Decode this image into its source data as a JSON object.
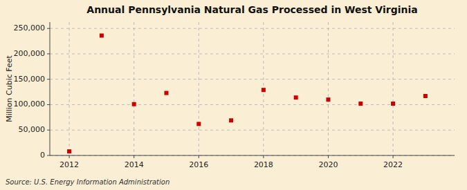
{
  "chart_data": {
    "type": "scatter",
    "title": "Annual Pennsylvania Natural Gas Processed in West Virginia",
    "ylabel": "Million Cubic Feet",
    "source": "Source: U.S. Energy Information Administration",
    "x": [
      2012,
      2013,
      2014,
      2015,
      2016,
      2017,
      2018,
      2019,
      2020,
      2021,
      2022,
      2023
    ],
    "values": [
      8000,
      236000,
      101000,
      123000,
      62000,
      69000,
      129000,
      114000,
      110000,
      102000,
      102000,
      117000
    ],
    "color": "#cc0000",
    "marker": "square",
    "xlim": [
      2011.4,
      2023.9
    ],
    "xticks": [
      2012,
      2014,
      2016,
      2018,
      2020,
      2022
    ],
    "ylim": [
      0,
      262500
    ],
    "yticks": [
      0,
      {
        "value": 50000,
        "label": "50,000"
      },
      {
        "value": 100000,
        "label": "100,000"
      },
      {
        "value": 150000,
        "label": "150,000"
      },
      {
        "value": 200000,
        "label": "200,000"
      },
      {
        "value": 250000,
        "label": "250,000"
      }
    ],
    "grid": true
  }
}
